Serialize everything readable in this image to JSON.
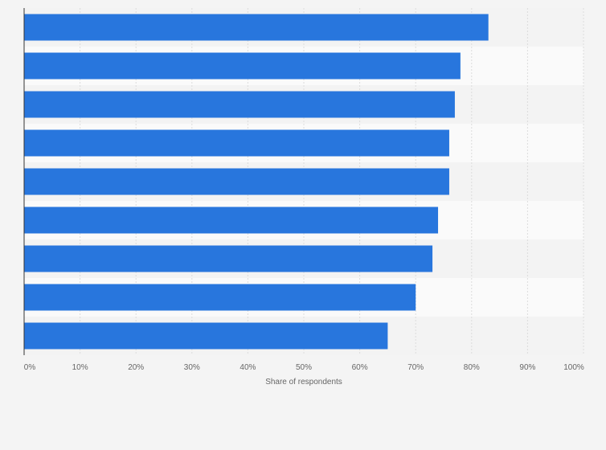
{
  "chart_data": {
    "type": "bar",
    "orientation": "horizontal",
    "categories": [
      "",
      "",
      "",
      "",
      "",
      "",
      "",
      "",
      ""
    ],
    "values": [
      83,
      78,
      77,
      76,
      76,
      74,
      73,
      70,
      65
    ],
    "xlabel": "Share of respondents",
    "xlim": [
      0,
      100
    ],
    "x_ticks": [
      "0%",
      "10%",
      "20%",
      "30%",
      "40%",
      "50%",
      "60%",
      "70%",
      "80%",
      "90%",
      "100%"
    ],
    "grid": true,
    "bar_color": "#2876dd"
  }
}
